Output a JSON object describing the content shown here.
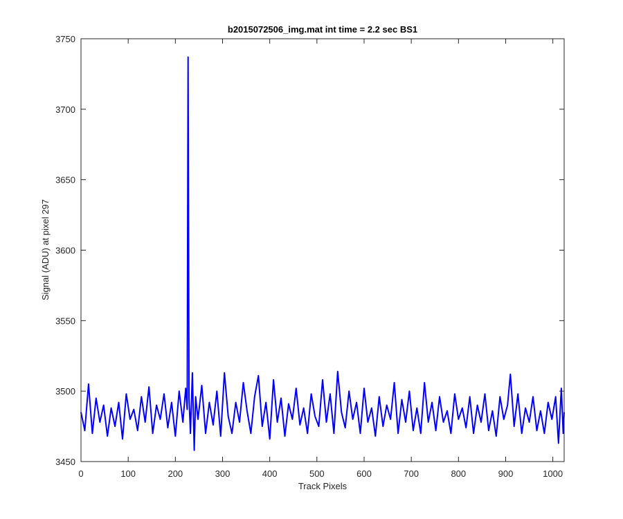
{
  "chart_data": {
    "type": "line",
    "title": "b2015072506_img.mat int time = 2.2 sec   BS1",
    "xlabel": "Track Pixels",
    "ylabel": "Signal (ADU) at pixel 297",
    "xlim": [
      0,
      1024
    ],
    "ylim": [
      3450,
      3750
    ],
    "xticks": [
      0,
      100,
      200,
      300,
      400,
      500,
      600,
      700,
      800,
      900,
      1000
    ],
    "yticks": [
      3450,
      3500,
      3550,
      3600,
      3650,
      3700,
      3750
    ],
    "grid": false,
    "legend": "none",
    "line_color": "#0000ff",
    "series": [
      {
        "x": [
          0,
          8,
          16,
          24,
          32,
          40,
          48,
          56,
          64,
          72,
          80,
          88,
          96,
          104,
          112,
          120,
          128,
          136,
          144,
          152,
          160,
          168,
          176,
          184,
          192,
          200,
          208,
          216,
          222,
          225,
          227,
          229,
          232,
          236,
          240,
          243,
          248,
          256,
          264,
          272,
          280,
          288,
          296,
          304,
          312,
          320,
          328,
          336,
          344,
          352,
          360,
          368,
          376,
          384,
          392,
          400,
          408,
          416,
          424,
          432,
          440,
          448,
          456,
          464,
          472,
          480,
          488,
          496,
          504,
          512,
          520,
          528,
          536,
          544,
          552,
          560,
          568,
          576,
          584,
          592,
          600,
          608,
          616,
          624,
          632,
          640,
          648,
          656,
          664,
          672,
          680,
          688,
          696,
          704,
          712,
          720,
          728,
          736,
          744,
          752,
          760,
          768,
          776,
          784,
          792,
          800,
          808,
          816,
          824,
          832,
          840,
          848,
          856,
          864,
          872,
          880,
          888,
          896,
          904,
          910,
          918,
          926,
          934,
          942,
          950,
          958,
          966,
          974,
          982,
          990,
          998,
          1006,
          1012,
          1018,
          1022,
          1024
        ],
        "y": [
          3485,
          3472,
          3505,
          3470,
          3495,
          3478,
          3490,
          3468,
          3488,
          3475,
          3492,
          3466,
          3498,
          3480,
          3487,
          3472,
          3496,
          3478,
          3503,
          3470,
          3490,
          3480,
          3498,
          3474,
          3492,
          3468,
          3500,
          3478,
          3502,
          3487,
          3737,
          3495,
          3470,
          3513,
          3458,
          3496,
          3480,
          3504,
          3470,
          3492,
          3476,
          3500,
          3468,
          3513,
          3482,
          3470,
          3492,
          3478,
          3506,
          3486,
          3470,
          3496,
          3511,
          3475,
          3492,
          3466,
          3508,
          3478,
          3495,
          3468,
          3491,
          3480,
          3502,
          3476,
          3488,
          3470,
          3498,
          3482,
          3475,
          3508,
          3478,
          3498,
          3470,
          3514,
          3485,
          3474,
          3500,
          3480,
          3492,
          3470,
          3502,
          3478,
          3488,
          3468,
          3496,
          3475,
          3490,
          3480,
          3506,
          3470,
          3494,
          3478,
          3500,
          3472,
          3488,
          3470,
          3506,
          3478,
          3492,
          3472,
          3496,
          3478,
          3486,
          3470,
          3498,
          3480,
          3488,
          3474,
          3496,
          3470,
          3490,
          3478,
          3498,
          3472,
          3486,
          3468,
          3496,
          3480,
          3490,
          3512,
          3475,
          3498,
          3470,
          3488,
          3478,
          3496,
          3472,
          3486,
          3470,
          3492,
          3480,
          3496,
          3463,
          3502,
          3470,
          3485
        ]
      }
    ]
  }
}
